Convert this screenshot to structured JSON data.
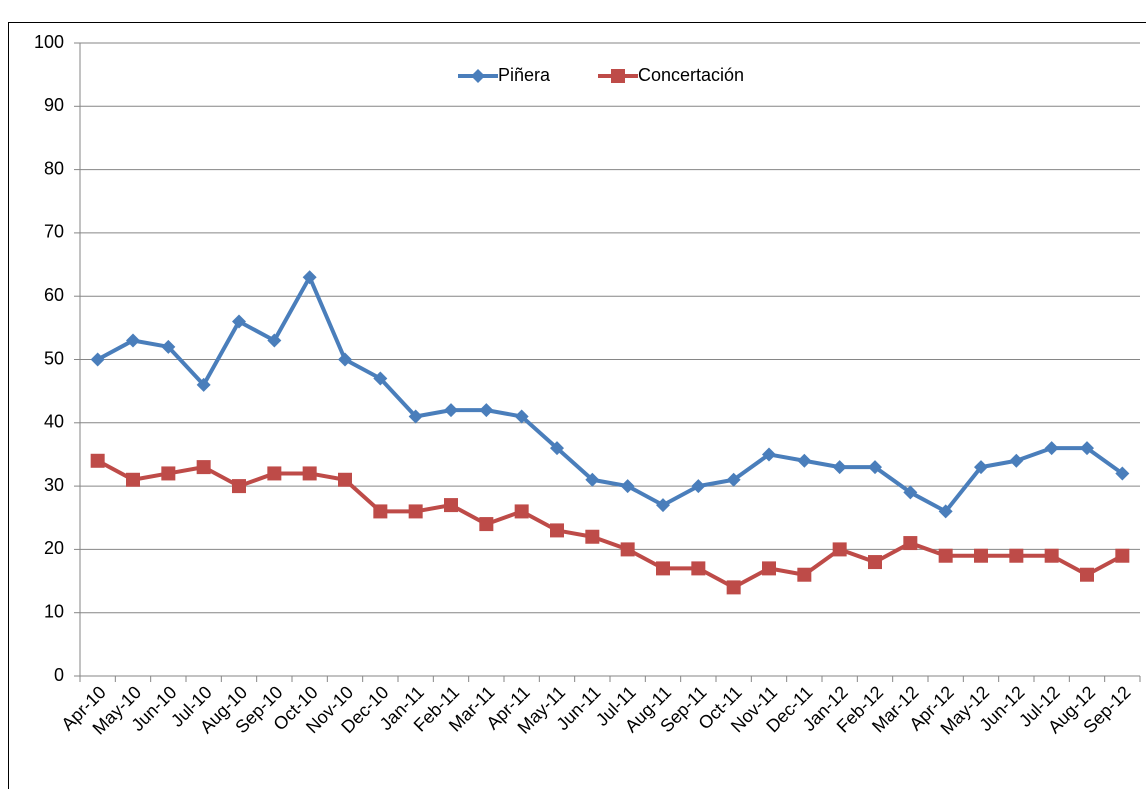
{
  "chart_data": {
    "type": "line",
    "categories": [
      "Apr-10",
      "May-10",
      "Jun-10",
      "Jul-10",
      "Aug-10",
      "Sep-10",
      "Oct-10",
      "Nov-10",
      "Dec-10",
      "Jan-11",
      "Feb-11",
      "Mar-11",
      "Apr-11",
      "May-11",
      "Jun-11",
      "Jul-11",
      "Aug-11",
      "Sep-11",
      "Oct-11",
      "Nov-11",
      "Dec-11",
      "Jan-12",
      "Feb-12",
      "Mar-12",
      "Apr-12",
      "May-12",
      "Jun-12",
      "Jul-12",
      "Aug-12",
      "Sep-12"
    ],
    "series": [
      {
        "name": "Piñera",
        "color": "#4a7ebb",
        "marker": "diamond",
        "values": [
          50,
          53,
          52,
          46,
          56,
          53,
          63,
          50,
          47,
          41,
          42,
          42,
          41,
          36,
          31,
          30,
          27,
          30,
          31,
          35,
          34,
          33,
          33,
          29,
          26,
          33,
          34,
          36,
          36,
          32
        ]
      },
      {
        "name": "Concertación",
        "color": "#be4b48",
        "marker": "square",
        "values": [
          34,
          31,
          32,
          33,
          30,
          32,
          32,
          31,
          26,
          26,
          27,
          24,
          26,
          23,
          22,
          20,
          17,
          17,
          14,
          17,
          16,
          20,
          18,
          21,
          19,
          19,
          19,
          19,
          16,
          19
        ]
      }
    ],
    "ylim": [
      0,
      100
    ],
    "yticks": [
      0,
      10,
      20,
      30,
      40,
      50,
      60,
      70,
      80,
      90,
      100
    ],
    "grid": true,
    "legend": "top"
  }
}
